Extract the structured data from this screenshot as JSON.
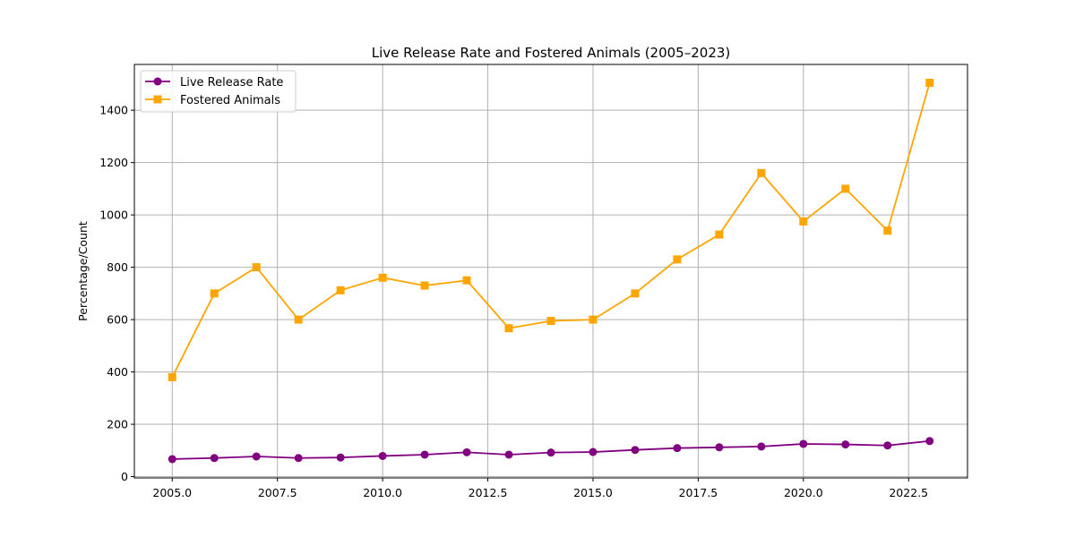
{
  "chart_data": {
    "type": "line",
    "title": "Live Release Rate and Fostered Animals (2005–2023)",
    "xlabel": "",
    "ylabel": "Percentage/Count",
    "x": [
      2005,
      2006,
      2007,
      2008,
      2009,
      2010,
      2011,
      2012,
      2013,
      2014,
      2015,
      2016,
      2017,
      2018,
      2019,
      2020,
      2021,
      2022,
      2023
    ],
    "xlim": [
      2004.1,
      2023.9
    ],
    "ylim": [
      -5,
      1575
    ],
    "xticks": [
      2005,
      2007.5,
      2010,
      2012.5,
      2015,
      2017.5,
      2020,
      2022.5
    ],
    "xtick_labels": [
      "2005.0",
      "2007.5",
      "2010.0",
      "2012.5",
      "2015.0",
      "2017.5",
      "2020.0",
      "2022.5"
    ],
    "yticks": [
      0,
      200,
      400,
      600,
      800,
      1000,
      1200,
      1400
    ],
    "ytick_labels": [
      "0",
      "200",
      "400",
      "600",
      "800",
      "1000",
      "1200",
      "1400"
    ],
    "grid": true,
    "legend_position": "top-left",
    "series": [
      {
        "name": "Live Release Rate",
        "color": "#800080",
        "marker": "circle",
        "values": [
          67,
          71,
          77,
          71,
          73,
          79,
          84,
          93,
          84,
          92,
          94,
          102,
          109,
          112,
          115,
          125,
          123,
          119,
          136
        ]
      },
      {
        "name": "Fostered Animals",
        "color": "#FFA500",
        "marker": "square",
        "values": [
          380,
          700,
          800,
          600,
          712,
          760,
          730,
          750,
          567,
          595,
          600,
          700,
          830,
          925,
          1160,
          975,
          1100,
          940,
          1505
        ]
      }
    ]
  }
}
